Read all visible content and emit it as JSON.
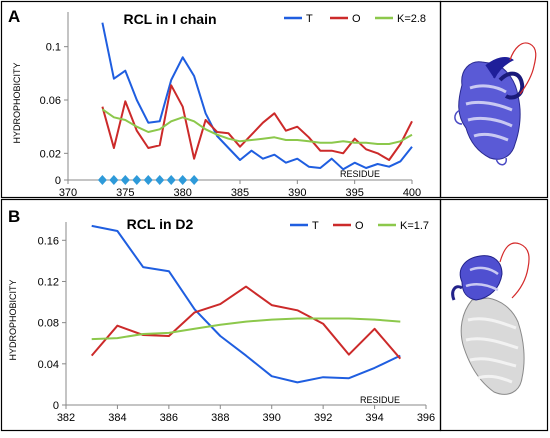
{
  "colors": {
    "T": "#1f5ee0",
    "O": "#cc2a2a",
    "K": "#8cc84b",
    "diamond": "#2e9ad9",
    "axis": "#888888"
  },
  "chart_data": [
    {
      "panel_label": "A",
      "type": "line",
      "title": "RCL in I chain",
      "xlabel": "RESIDUE",
      "ylabel": "HYDROPHOBICITY",
      "xlim": [
        370,
        400
      ],
      "ylim": [
        0,
        0.12
      ],
      "xticks": [
        370,
        375,
        380,
        385,
        390,
        395,
        400
      ],
      "yticks": [
        0,
        0.02,
        0.06,
        0.1
      ],
      "ytick_labels": [
        "0",
        "0.02",
        "0.06",
        "0.1"
      ],
      "x": [
        373,
        374,
        375,
        376,
        377,
        378,
        379,
        380,
        381,
        382,
        383,
        384,
        385,
        386,
        387,
        388,
        389,
        390,
        391,
        392,
        393,
        394,
        395,
        396,
        397,
        398,
        399,
        400
      ],
      "series": [
        {
          "name": "T",
          "color_key": "T",
          "values": [
            0.118,
            0.076,
            0.082,
            0.06,
            0.043,
            0.044,
            0.075,
            0.092,
            0.078,
            0.05,
            0.033,
            0.024,
            0.015,
            0.022,
            0.016,
            0.019,
            0.013,
            0.016,
            0.01,
            0.009,
            0.016,
            0.008,
            0.013,
            0.009,
            0.012,
            0.01,
            0.014,
            0.025
          ]
        },
        {
          "name": "O",
          "color_key": "O",
          "values": [
            0.055,
            0.024,
            0.059,
            0.037,
            0.024,
            0.026,
            0.071,
            0.055,
            0.016,
            0.045,
            0.036,
            0.035,
            0.025,
            0.034,
            0.043,
            0.05,
            0.037,
            0.04,
            0.032,
            0.022,
            0.022,
            0.02,
            0.031,
            0.023,
            0.02,
            0.015,
            0.027,
            0.044
          ]
        },
        {
          "name": "K=2.8",
          "color_key": "K",
          "values": [
            0.053,
            0.047,
            0.045,
            0.04,
            0.036,
            0.038,
            0.044,
            0.047,
            0.044,
            0.038,
            0.034,
            0.031,
            0.029,
            0.03,
            0.031,
            0.032,
            0.03,
            0.03,
            0.029,
            0.028,
            0.028,
            0.029,
            0.028,
            0.028,
            0.027,
            0.027,
            0.029,
            0.034
          ]
        }
      ],
      "markers": {
        "type": "diamond",
        "x": [
          373,
          374,
          375,
          376,
          377,
          378,
          379,
          380,
          381
        ]
      },
      "legend_position": "top-right",
      "grid": false
    },
    {
      "panel_label": "B",
      "type": "line",
      "title": "RCL in D2",
      "xlabel": "RESIDUE",
      "ylabel": "HYDROPHOBICITY",
      "xlim": [
        382,
        396
      ],
      "ylim": [
        0,
        0.17
      ],
      "xticks": [
        382,
        384,
        386,
        388,
        390,
        392,
        394,
        396
      ],
      "yticks": [
        0,
        0.04,
        0.08,
        0.12,
        0.16
      ],
      "ytick_labels": [
        "0",
        "0.04",
        "0.08",
        "0.12",
        "0.16"
      ],
      "x": [
        383,
        384,
        385,
        386,
        387,
        388,
        389,
        390,
        391,
        392,
        393,
        394,
        395
      ],
      "series": [
        {
          "name": "T",
          "color_key": "T",
          "values": [
            0.174,
            0.169,
            0.134,
            0.13,
            0.093,
            0.067,
            0.048,
            0.028,
            0.022,
            0.027,
            0.026,
            0.036,
            0.048
          ]
        },
        {
          "name": "O",
          "color_key": "O",
          "values": [
            0.048,
            0.077,
            0.068,
            0.067,
            0.09,
            0.098,
            0.115,
            0.097,
            0.092,
            0.079,
            0.049,
            0.074,
            0.045
          ]
        },
        {
          "name": "K=1.7",
          "color_key": "K",
          "values": [
            0.064,
            0.065,
            0.069,
            0.07,
            0.074,
            0.078,
            0.081,
            0.083,
            0.084,
            0.084,
            0.084,
            0.083,
            0.081
          ]
        }
      ],
      "legend_position": "top-right",
      "grid": false
    }
  ]
}
